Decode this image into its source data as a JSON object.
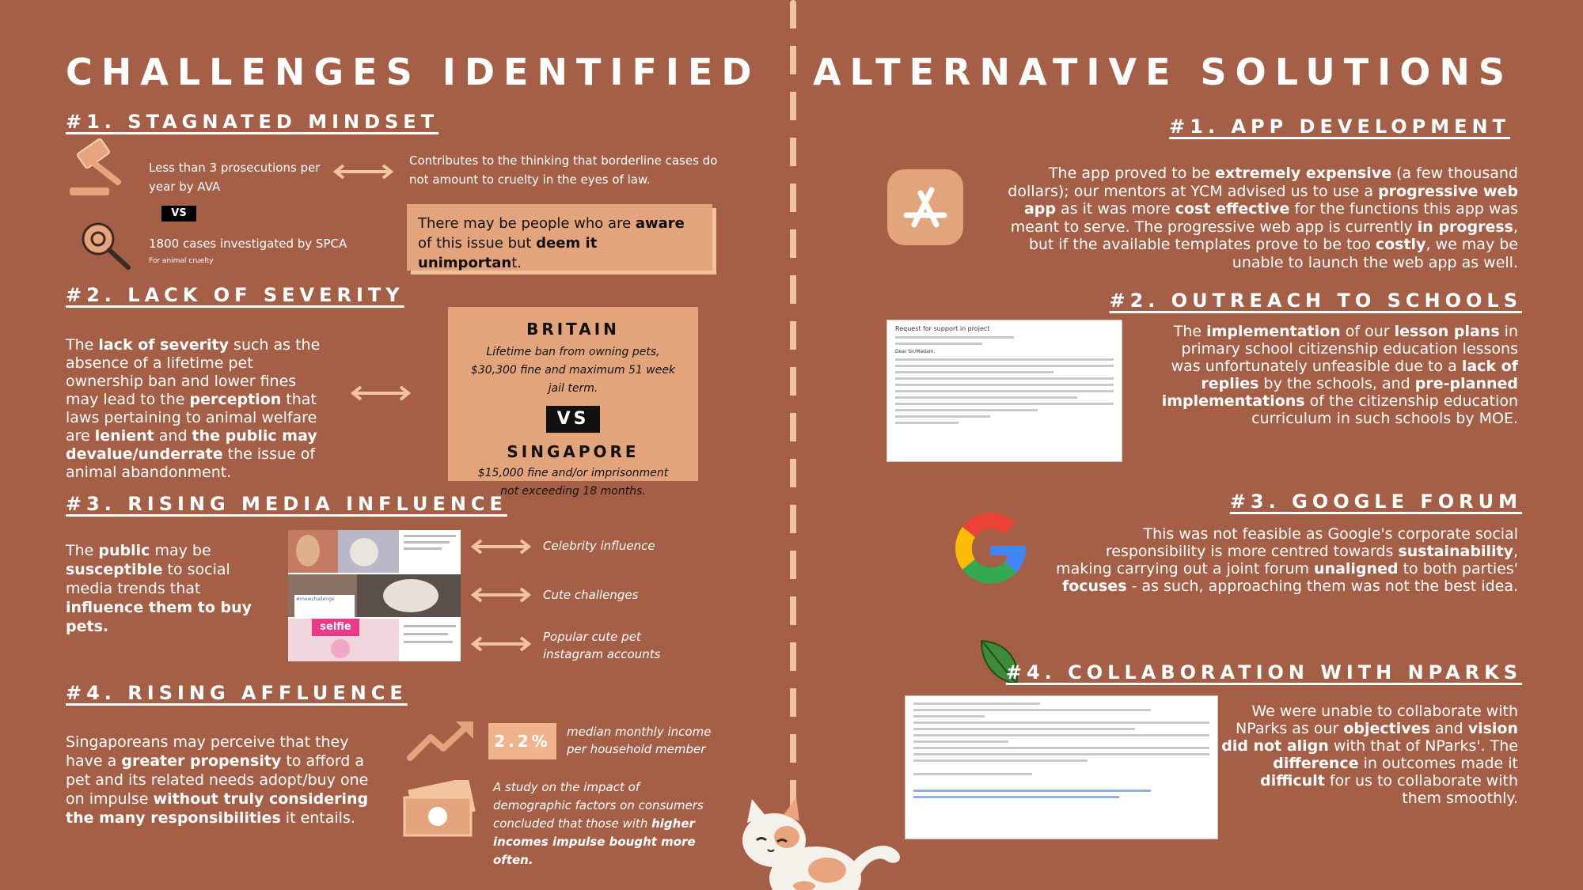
{
  "left": {
    "title": "CHALLENGES IDENTIFIED",
    "s1": {
      "heading": "#1. STAGNATED MINDSET",
      "ava_text": "Less than 3 prosecutions per year by AVA",
      "vs": "VS",
      "spca_text": "1800 cases investigated by SPCA",
      "spca_note": "For animal cruelty",
      "contributes": "Contributes to the thinking that borderline cases do not amount to cruelty in the eyes of law.",
      "callout": {
        "t1": "There may be people who are ",
        "b1": "aware",
        "t2": " of this issue but ",
        "b2": "deem it unimportan",
        "t3": "t."
      }
    },
    "s2": {
      "heading": "#2. LACK OF SEVERITY",
      "para": {
        "t1": "The ",
        "b1": "lack of severity",
        "t2": " such as the absence of a lifetime pet ownership ban and lower fines may lead to the ",
        "b2": "perception",
        "t3": " that laws pertaining to animal welfare are ",
        "b3": "lenient",
        "t4": " and ",
        "b4": "the public may devalue/underrate",
        "t5": " the issue of animal abandonment."
      },
      "britain_name": "BRITAIN",
      "britain_desc": "Lifetime ban from owning pets, $30,300 fine and maximum 51 week jail term.",
      "vs": "VS",
      "singapore_name": "SINGAPORE",
      "singapore_desc": "$15,000 fine and/or imprisonment not exceeding 18 months."
    },
    "s3": {
      "heading": "#3. RISING MEDIA INFLUENCE",
      "para": {
        "t1": "The ",
        "b1": "public",
        "t2": " may be ",
        "b2": "susceptible",
        "t3": " to social media trends that ",
        "b3": "influence them to buy pets."
      },
      "items": [
        {
          "label": "Celebrity influence"
        },
        {
          "label": "Cute challenges",
          "overlay": "#mewchallenge"
        },
        {
          "label": "Popular cute pet instagram accounts",
          "overlay": "selfie"
        }
      ]
    },
    "s4": {
      "heading": "#4. RISING AFFLUENCE",
      "para": {
        "t1": "Singaporeans may perceive that they have a ",
        "b1": "greater propensity",
        "t2": " to afford a pet and its related needs adopt/buy one on impulse ",
        "b2": "without truly considering the many responsibilities",
        "t3": " it entails."
      },
      "pct": "2.2%",
      "pct_label": "median monthly income per household member",
      "study": {
        "t1": "A study on the impact of demographic factors on consumers concluded that those with ",
        "b1": "higher incomes impulse bought more often."
      }
    }
  },
  "right": {
    "title": "ALTERNATIVE SOLUTIONS",
    "s1": {
      "heading": "#1. APP DEVELOPMENT",
      "para": {
        "t1": "The app proved to be ",
        "b1": "extremely expensive",
        "t2": " (a few thousand dollars); our mentors at YCM advised us to use a ",
        "b2": "progressive web app",
        "t3": " as it was more ",
        "b3": "cost effective",
        "t4": " for the functions this app was meant to serve. The progressive web app is currently ",
        "b4": "in progress",
        "t5": ", but if the available templates prove to be too ",
        "b5": "costly",
        "t6": ", we may be unable to launch the web app as well."
      }
    },
    "s2": {
      "heading": "#2. OUTREACH TO SCHOOLS",
      "email_subject": "Request for support in project",
      "email_greeting": "Dear Sir/Madam,",
      "para": {
        "t1": "The ",
        "b1": "implementation",
        "t2": " of our ",
        "b2": "lesson plans",
        "t3": " in primary school citizenship education lessons was unfortunately unfeasible due to a ",
        "b3": "lack of replies",
        "t4": " by the schools, and ",
        "b4": "pre-planned implementations",
        "t5": " of the citizenship education curriculum in such schools by MOE."
      }
    },
    "s3": {
      "heading": "#3. GOOGLE FORUM",
      "para": {
        "t1": "This was not feasible as Google's corporate social responsibility is more centred towards ",
        "b1": "sustainability",
        "t2": ", making carrying out a joint forum ",
        "b2": "unaligned",
        "t3": " to both parties' ",
        "b3": "focuses",
        "t4": " - as such, approaching them was not the best idea."
      }
    },
    "s4": {
      "heading": "#4. COLLABORATION WITH NPARKS",
      "para": {
        "t1": "We were unable to collaborate with NParks as our ",
        "b1": "objectives",
        "t2": " and ",
        "b2": "vision did not align",
        "t3": " with that of NParks'. The ",
        "b3": "difference",
        "t4": " in outcomes made it ",
        "b4": "difficult",
        "t5": " for us to collaborate with them smoothly."
      }
    }
  },
  "colors": {
    "background": "#a65f47",
    "accent": "#e3a47b",
    "accent_light": "#f2c5a0"
  }
}
